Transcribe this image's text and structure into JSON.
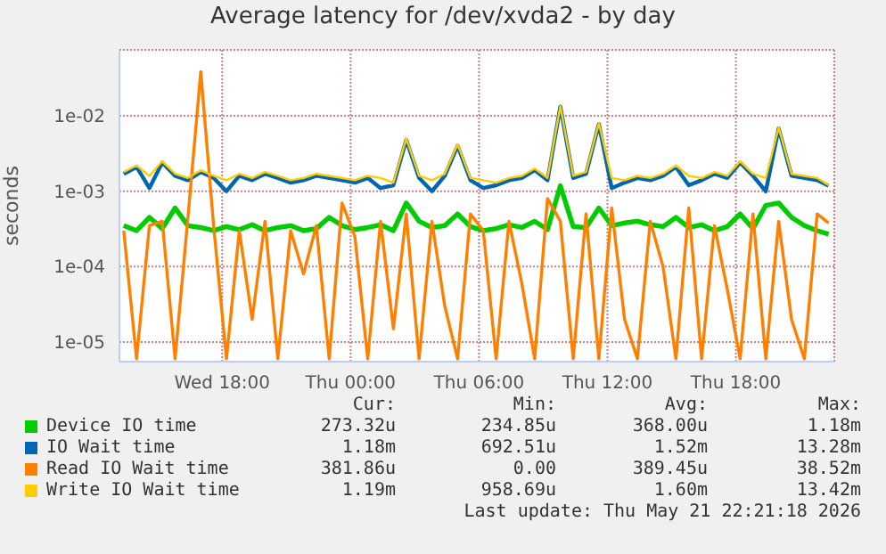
{
  "chart_data": {
    "type": "line",
    "title": "Average latency for /dev/xvda2 - by day",
    "ylabel": "seconds",
    "log": true,
    "grid": true,
    "legend": "bottom",
    "marker": "none",
    "line_style": "solid",
    "x": [
      "2026-05-20T13:24",
      "2026-05-20T14:00",
      "2026-05-20T14:36",
      "2026-05-20T15:12",
      "2026-05-20T15:48",
      "2026-05-20T16:24",
      "2026-05-20T17:00",
      "2026-05-20T17:36",
      "2026-05-20T18:12",
      "2026-05-20T18:48",
      "2026-05-20T19:24",
      "2026-05-20T20:00",
      "2026-05-20T20:36",
      "2026-05-20T21:12",
      "2026-05-20T21:48",
      "2026-05-20T22:24",
      "2026-05-20T23:00",
      "2026-05-20T23:36",
      "2026-05-21T00:12",
      "2026-05-21T00:48",
      "2026-05-21T01:24",
      "2026-05-21T02:00",
      "2026-05-21T02:36",
      "2026-05-21T03:12",
      "2026-05-21T03:48",
      "2026-05-21T04:24",
      "2026-05-21T05:00",
      "2026-05-21T05:36",
      "2026-05-21T06:12",
      "2026-05-21T06:48",
      "2026-05-21T07:24",
      "2026-05-21T08:00",
      "2026-05-21T08:36",
      "2026-05-21T09:12",
      "2026-05-21T09:48",
      "2026-05-21T10:24",
      "2026-05-21T11:00",
      "2026-05-21T11:36",
      "2026-05-21T12:12",
      "2026-05-21T12:48",
      "2026-05-21T13:24",
      "2026-05-21T14:00",
      "2026-05-21T14:36",
      "2026-05-21T15:12",
      "2026-05-21T15:48",
      "2026-05-21T16:24",
      "2026-05-21T17:00",
      "2026-05-21T17:36",
      "2026-05-21T18:12",
      "2026-05-21T18:48",
      "2026-05-21T19:24",
      "2026-05-21T20:00",
      "2026-05-21T20:36",
      "2026-05-21T21:12",
      "2026-05-21T21:48",
      "2026-05-21T22:20"
    ],
    "xlim": [
      "2026-05-20T13:12",
      "2026-05-21T22:36"
    ],
    "xticks": [
      {
        "value": "2026-05-20T18:00",
        "label": "Wed 18:00"
      },
      {
        "value": "2026-05-21T00:00",
        "label": "Thu 00:00"
      },
      {
        "value": "2026-05-21T06:00",
        "label": "Thu 06:00"
      },
      {
        "value": "2026-05-21T12:00",
        "label": "Thu 12:00"
      },
      {
        "value": "2026-05-21T18:00",
        "label": "Thu 18:00"
      }
    ],
    "ylim": [
      5.5e-06,
      0.075
    ],
    "yticks": [
      {
        "value": 1e-05,
        "label": "1e-05"
      },
      {
        "value": 0.0001,
        "label": "1e-04"
      },
      {
        "value": 0.001,
        "label": "1e-03"
      },
      {
        "value": 0.01,
        "label": "1e-02"
      }
    ],
    "series": [
      {
        "name": "Device IO time",
        "color": "#00cc00",
        "values": [
          0.00035,
          0.0003,
          0.00045,
          0.00032,
          0.0006,
          0.00035,
          0.00033,
          0.0003,
          0.00034,
          0.00031,
          0.00036,
          0.0003,
          0.00033,
          0.00035,
          0.0003,
          0.00032,
          0.00045,
          0.00035,
          0.00031,
          0.00033,
          0.00036,
          0.0003,
          0.0007,
          0.0004,
          0.00033,
          0.00035,
          0.0005,
          0.00034,
          0.0003,
          0.00032,
          0.00036,
          0.00033,
          0.0004,
          0.00031,
          0.00118,
          0.00034,
          0.00033,
          0.0006,
          0.00035,
          0.00038,
          0.0004,
          0.00036,
          0.00034,
          0.00045,
          0.00033,
          0.00036,
          0.0003,
          0.00034,
          0.0005,
          0.00032,
          0.00065,
          0.0007,
          0.00045,
          0.00035,
          0.0003,
          0.00027
        ]
      },
      {
        "name": "IO Wait time",
        "color": "#0066b3",
        "values": [
          0.0017,
          0.0021,
          0.0011,
          0.0024,
          0.0016,
          0.0014,
          0.0018,
          0.0015,
          0.001,
          0.0016,
          0.0014,
          0.0017,
          0.0015,
          0.0013,
          0.0014,
          0.0016,
          0.0015,
          0.0014,
          0.0013,
          0.0015,
          0.0011,
          0.0012,
          0.0048,
          0.0015,
          0.001,
          0.0016,
          0.004,
          0.0014,
          0.0011,
          0.0012,
          0.0014,
          0.0015,
          0.0019,
          0.0014,
          0.01328,
          0.0015,
          0.0017,
          0.0078,
          0.0011,
          0.0013,
          0.0015,
          0.0014,
          0.0016,
          0.0021,
          0.0012,
          0.0014,
          0.0017,
          0.0015,
          0.0024,
          0.0016,
          0.001,
          0.0068,
          0.0016,
          0.0015,
          0.0014,
          0.00118
        ]
      },
      {
        "name": "Read IO Wait time",
        "color": "#ff8000",
        "values": [
          0.0003,
          6e-06,
          0.00035,
          0.0004,
          6e-06,
          0.00045,
          0.03852,
          0.00035,
          6e-06,
          0.0003,
          2e-05,
          0.0004,
          6e-06,
          0.0003,
          8e-05,
          0.00035,
          6e-06,
          0.0007,
          0.00025,
          6e-06,
          0.0004,
          1.5e-05,
          0.0005,
          6e-06,
          0.0004,
          3e-05,
          6e-06,
          0.0005,
          0.0003,
          6e-06,
          0.0004,
          6e-05,
          6e-06,
          0.0008,
          0.0004,
          6e-06,
          0.0005,
          6e-06,
          0.0006,
          2e-05,
          6e-06,
          0.0004,
          0.0001,
          6e-06,
          0.0006,
          6e-06,
          0.00035,
          5e-05,
          6e-06,
          0.0005,
          6e-06,
          0.0004,
          2e-05,
          6e-06,
          0.0005,
          0.00038
        ]
      },
      {
        "name": "Write IO Wait time",
        "color": "#ffcc00",
        "values": [
          0.0018,
          0.0022,
          0.0016,
          0.0025,
          0.0017,
          0.0015,
          0.0019,
          0.0016,
          0.0014,
          0.0017,
          0.0015,
          0.0018,
          0.0016,
          0.0014,
          0.0015,
          0.0017,
          0.0016,
          0.0015,
          0.0014,
          0.0016,
          0.0015,
          0.0013,
          0.005,
          0.0016,
          0.0014,
          0.0017,
          0.0042,
          0.0015,
          0.0014,
          0.0013,
          0.0015,
          0.0016,
          0.002,
          0.0015,
          0.01342,
          0.0016,
          0.0018,
          0.008,
          0.0015,
          0.0014,
          0.0016,
          0.0015,
          0.0017,
          0.0022,
          0.0016,
          0.0015,
          0.0018,
          0.0016,
          0.0025,
          0.0017,
          0.0015,
          0.007,
          0.0017,
          0.0016,
          0.0015,
          0.0012
        ]
      }
    ],
    "annotations": [
      "Cur:",
      "Min:",
      "Avg:",
      "Max:",
      "273.32u",
      "234.85u",
      "368.00u",
      "1.18m",
      "1.18m",
      "692.51u",
      "1.52m",
      "13.28m",
      "381.86u",
      "0.00",
      "389.45u",
      "38.52m",
      "1.19m",
      "958.69u",
      "1.60m",
      "13.42m",
      "Last update: Thu May 21 22:21:18 2026"
    ]
  }
}
